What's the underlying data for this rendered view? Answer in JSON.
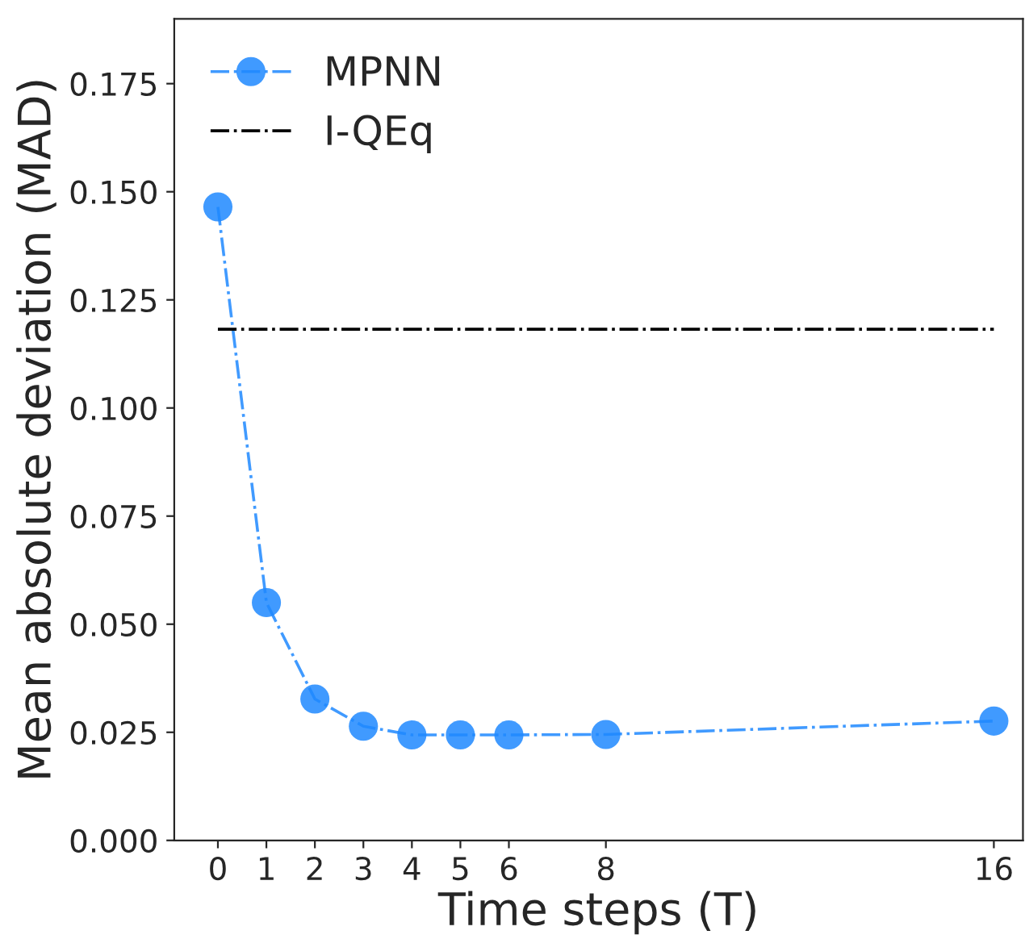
{
  "chart_data": {
    "type": "line",
    "xlabel": "Time steps (T)",
    "ylabel": "Mean absolute deviation (MAD)",
    "x": [
      0,
      1,
      2,
      3,
      4,
      5,
      6,
      8,
      16
    ],
    "series": [
      {
        "name": "MPNN",
        "color": "#1e88ff",
        "marker": "circle",
        "line_style": "dashdot",
        "values": [
          0.1465,
          0.055,
          0.0327,
          0.0264,
          0.0244,
          0.0244,
          0.0244,
          0.0245,
          0.0276
        ]
      },
      {
        "name": "I-QEq",
        "color": "#000000",
        "marker": "none",
        "line_style": "dashdot",
        "x": [
          0,
          16
        ],
        "values": [
          0.1182,
          0.1182
        ]
      }
    ],
    "xlim": [
      -0.9,
      16.6
    ],
    "xticks": [
      0,
      1,
      2,
      3,
      4,
      5,
      6,
      8,
      16
    ],
    "ylim": [
      0,
      0.19
    ],
    "yticks": [
      {
        "value": 0,
        "label": "0.000"
      },
      0.025,
      {
        "value": 0.05,
        "label": "0.050"
      },
      0.075,
      {
        "value": 0.1,
        "label": "0.100"
      },
      0.125,
      {
        "value": 0.15,
        "label": "0.150"
      },
      0.175
    ],
    "legend": "top left",
    "grid": false
  }
}
